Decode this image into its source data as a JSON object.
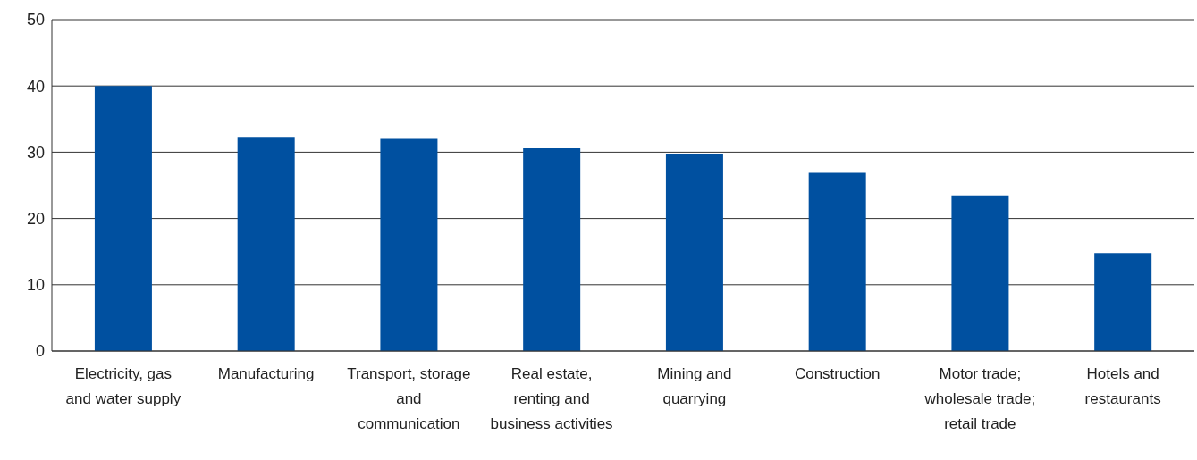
{
  "chart_data": {
    "type": "bar",
    "categories": [
      "Electricity, gas and water supply",
      "Manufacturing",
      "Transport, storage and communication",
      "Real estate, renting and business activities",
      "Mining and quarrying",
      "Construction",
      "Motor trade; wholesale trade; retail trade",
      "Hotels and restaurants"
    ],
    "values": [
      40.0,
      32.3,
      32.0,
      30.6,
      29.8,
      26.9,
      23.5,
      14.8
    ],
    "color": "#0050a0",
    "ylim": [
      0,
      50
    ],
    "yticks": [
      0,
      10,
      20,
      30,
      40,
      50
    ],
    "grid": "y"
  }
}
